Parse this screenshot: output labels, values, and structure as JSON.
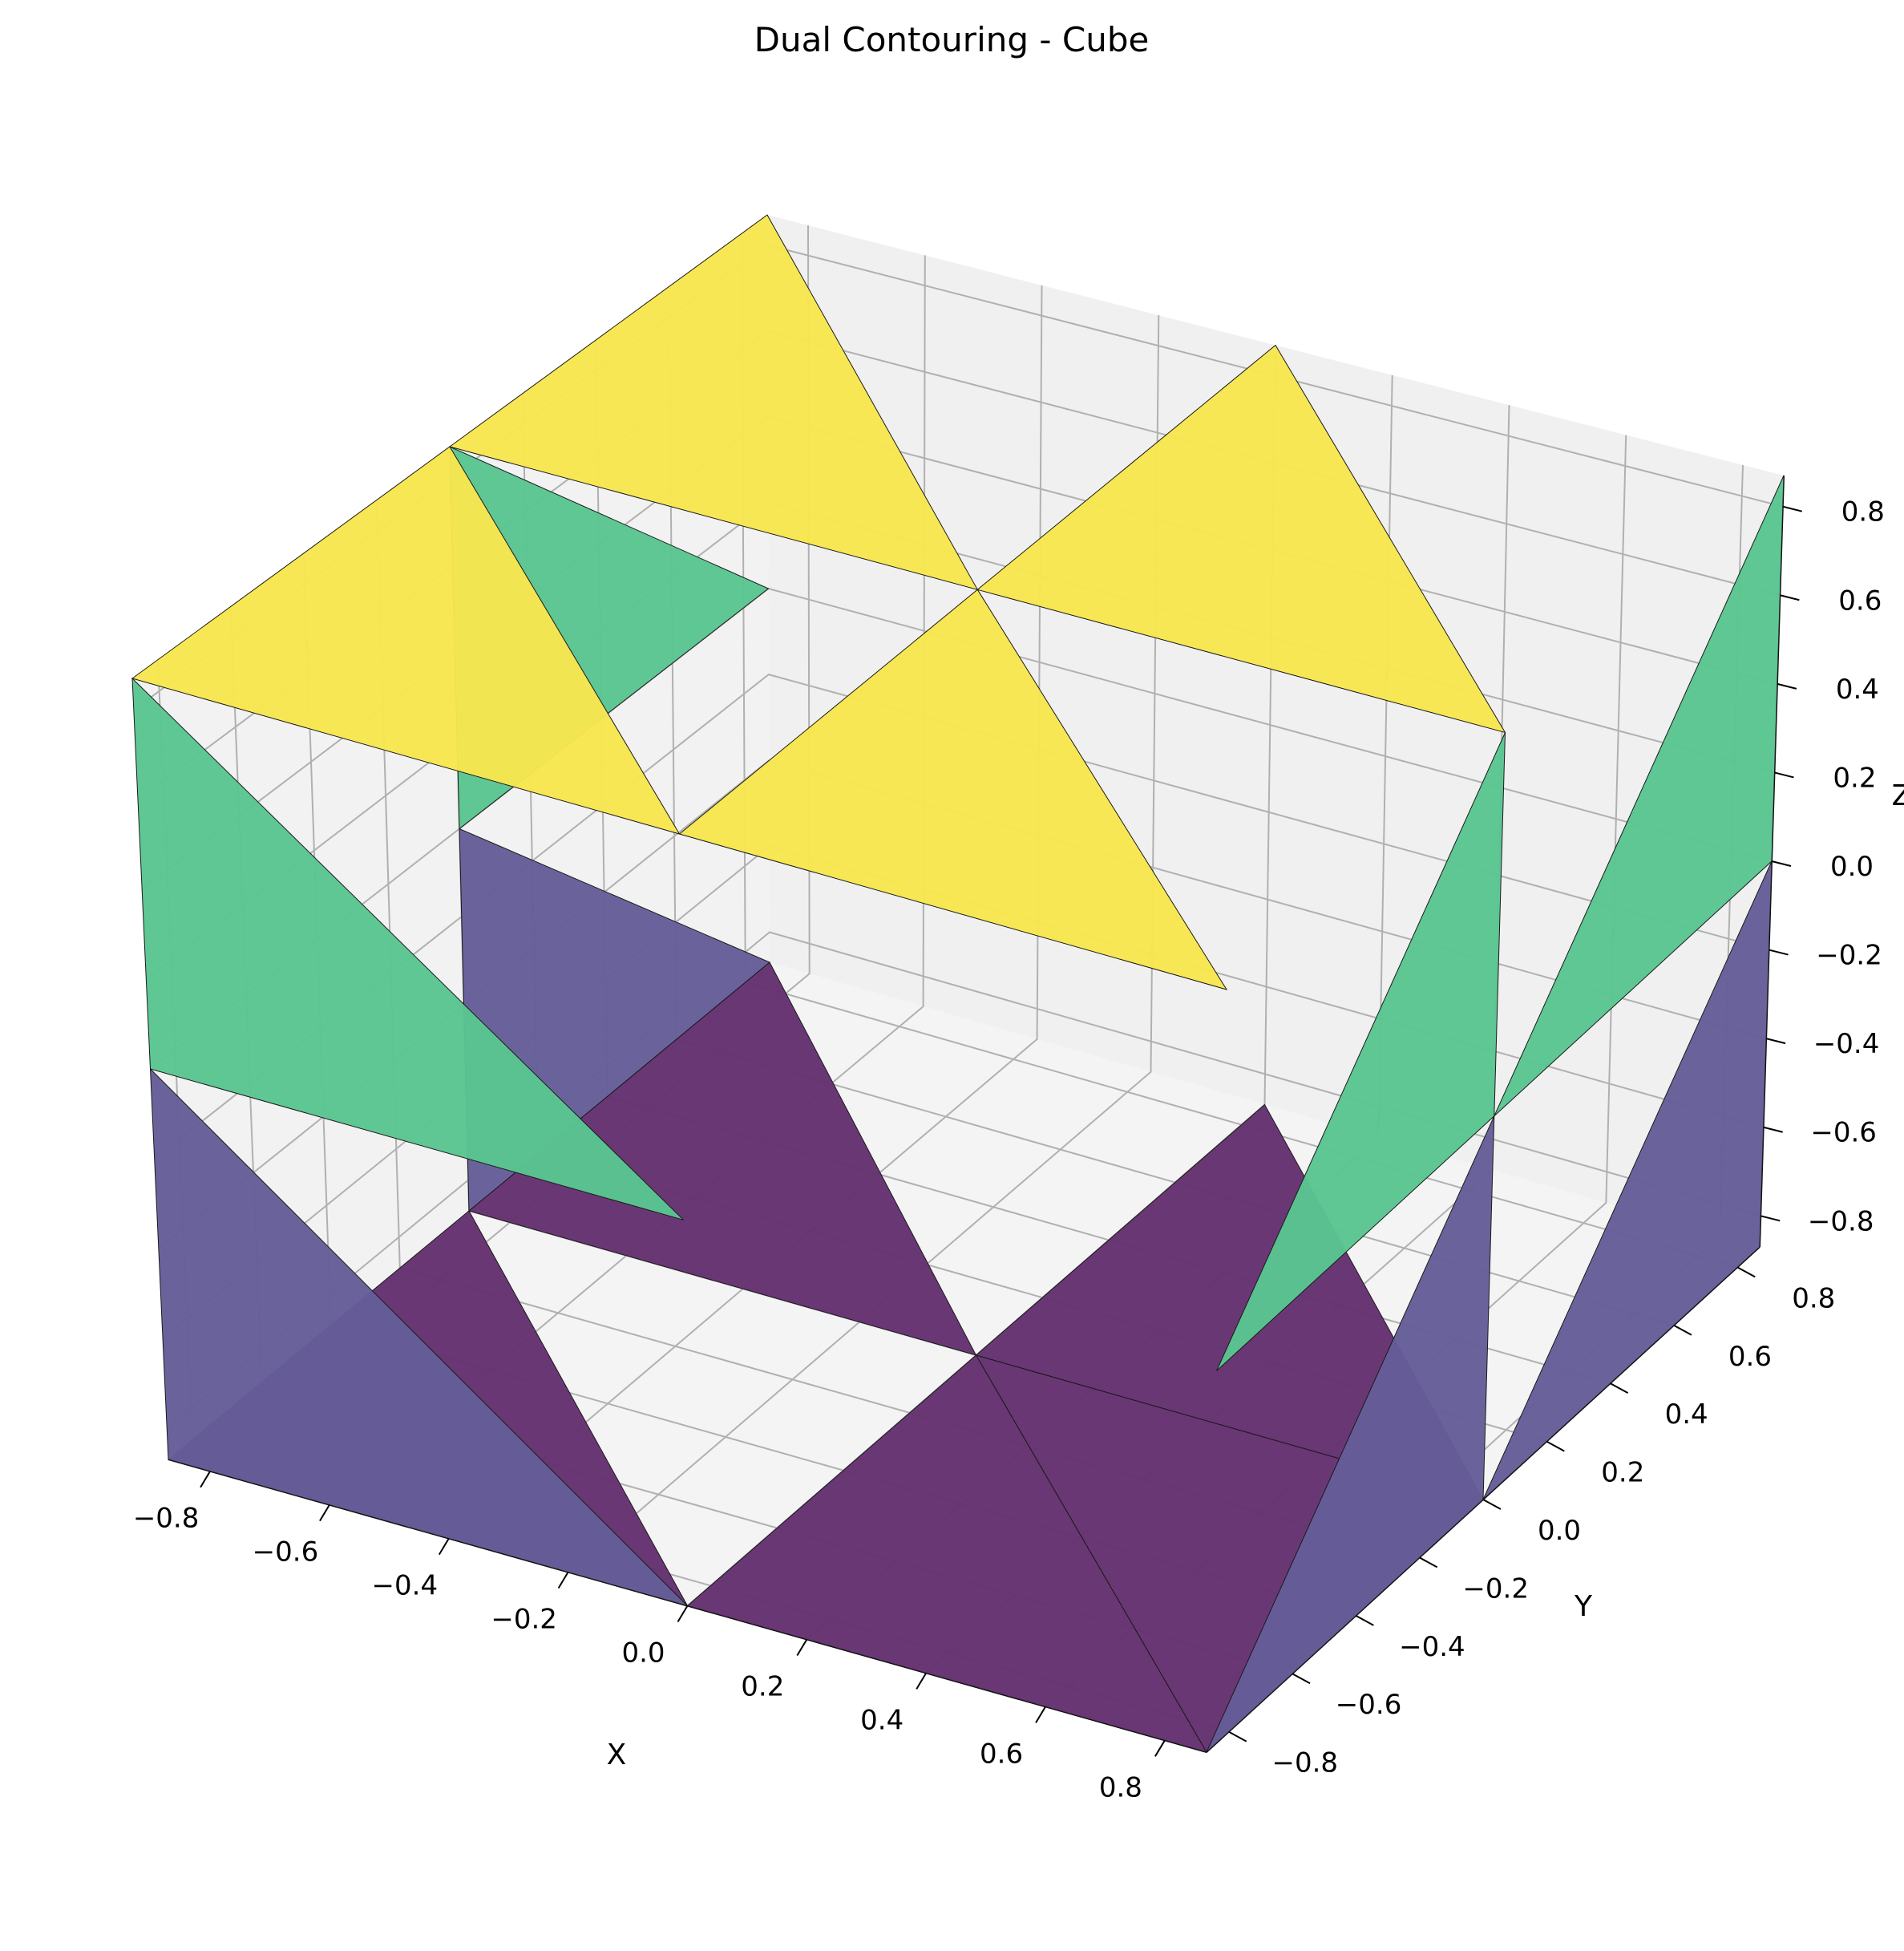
{
  "chart_data": {
    "type": "surface3d",
    "title": "Dual Contouring - Cube",
    "xlabel": "X",
    "ylabel": "Y",
    "zlabel": "Z",
    "xlim": [
      -0.87,
      0.87
    ],
    "ylim": [
      -0.87,
      0.87
    ],
    "zlim": [
      -0.87,
      0.87
    ],
    "x_ticks": [
      "−0.8",
      "−0.6",
      "−0.4",
      "−0.2",
      "0.0",
      "0.2",
      "0.4",
      "0.6",
      "0.8"
    ],
    "y_ticks": [
      "−0.8",
      "−0.6",
      "−0.4",
      "−0.2",
      "0.0",
      "0.2",
      "0.4",
      "0.6",
      "0.8"
    ],
    "z_ticks": [
      "−0.8",
      "−0.6",
      "−0.4",
      "−0.2",
      "0.0",
      "0.2",
      "0.4",
      "0.6",
      "0.8"
    ],
    "x_tick_values": [
      -0.8,
      -0.6,
      -0.4,
      -0.2,
      0.0,
      0.2,
      0.4,
      0.6,
      0.8
    ],
    "y_tick_values": [
      -0.8,
      -0.6,
      -0.4,
      -0.2,
      0.0,
      0.2,
      0.4,
      0.6,
      0.8
    ],
    "z_tick_values": [
      -0.8,
      -0.6,
      -0.4,
      -0.2,
      0.0,
      0.2,
      0.4,
      0.6,
      0.8
    ],
    "grid": true,
    "colormap": "viridis",
    "colors": {
      "top": "#f7e64f",
      "side_mid": "#5ac58f",
      "side_low": "#655e98",
      "bottom": "#653171",
      "pane_left": "#f2f2f2",
      "pane_back": "#f0f0f0",
      "pane_floor": "#f4f4f4",
      "grid": "#b0b0b0"
    },
    "triangles": [
      {
        "face": "bottom",
        "color": "#653171",
        "v": [
          [
            -0.87,
            -0.87,
            -0.87
          ],
          [
            0.0,
            -0.87,
            -0.87
          ],
          [
            -0.87,
            0.0,
            -0.87
          ]
        ]
      },
      {
        "face": "bottom",
        "color": "#653171",
        "v": [
          [
            0.0,
            -0.87,
            -0.87
          ],
          [
            0.87,
            -0.87,
            -0.87
          ],
          [
            0.0,
            0.0,
            -0.87
          ]
        ]
      },
      {
        "face": "bottom",
        "color": "#653171",
        "v": [
          [
            -0.87,
            0.0,
            -0.87
          ],
          [
            0.0,
            0.0,
            -0.87
          ],
          [
            -0.87,
            0.87,
            -0.87
          ]
        ]
      },
      {
        "face": "bottom",
        "color": "#653171",
        "v": [
          [
            0.0,
            0.0,
            -0.87
          ],
          [
            0.87,
            0.0,
            -0.87
          ],
          [
            0.0,
            0.87,
            -0.87
          ]
        ]
      },
      {
        "face": "bottom",
        "color": "#653171",
        "v": [
          [
            0.87,
            -0.87,
            -0.87
          ],
          [
            0.87,
            0.0,
            -0.87
          ],
          [
            0.0,
            0.0,
            -0.87
          ]
        ]
      },
      {
        "face": "side-y-neg",
        "color": "#655e98",
        "v": [
          [
            -0.87,
            -0.87,
            -0.87
          ],
          [
            -0.87,
            -0.87,
            0.0
          ],
          [
            0.0,
            -0.87,
            -0.87
          ]
        ]
      },
      {
        "face": "side-y-neg",
        "color": "#5ac58f",
        "v": [
          [
            -0.87,
            -0.87,
            0.0
          ],
          [
            -0.87,
            -0.87,
            0.87
          ],
          [
            0.0,
            -0.87,
            0.0
          ]
        ]
      },
      {
        "face": "side-x-neg",
        "color": "#655e98",
        "v": [
          [
            -0.87,
            0.0,
            -0.87
          ],
          [
            -0.87,
            0.0,
            0.0
          ],
          [
            -0.87,
            0.87,
            -0.87
          ]
        ]
      },
      {
        "face": "side-x-neg",
        "color": "#5ac58f",
        "v": [
          [
            -0.87,
            0.0,
            0.0
          ],
          [
            -0.87,
            0.0,
            0.87
          ],
          [
            -0.87,
            0.87,
            0.0
          ]
        ]
      },
      {
        "face": "side-x-pos",
        "color": "#655e98",
        "v": [
          [
            0.87,
            -0.87,
            -0.87
          ],
          [
            0.87,
            0.0,
            -0.87
          ],
          [
            0.87,
            0.0,
            0.0
          ]
        ]
      },
      {
        "face": "side-x-pos",
        "color": "#5ac58f",
        "v": [
          [
            0.87,
            -0.87,
            0.0
          ],
          [
            0.87,
            0.0,
            0.0
          ],
          [
            0.87,
            0.0,
            0.87
          ]
        ]
      },
      {
        "face": "side-x-pos",
        "color": "#655e98",
        "v": [
          [
            0.87,
            0.0,
            -0.87
          ],
          [
            0.87,
            0.87,
            -0.87
          ],
          [
            0.87,
            0.87,
            0.0
          ]
        ]
      },
      {
        "face": "side-x-pos",
        "color": "#5ac58f",
        "v": [
          [
            0.87,
            0.0,
            0.0
          ],
          [
            0.87,
            0.87,
            0.0
          ],
          [
            0.87,
            0.87,
            0.87
          ]
        ]
      },
      {
        "face": "top",
        "color": "#f7e64f",
        "v": [
          [
            -0.87,
            -0.87,
            0.87
          ],
          [
            0.0,
            -0.87,
            0.87
          ],
          [
            -0.87,
            0.0,
            0.87
          ]
        ]
      },
      {
        "face": "top",
        "color": "#f7e64f",
        "v": [
          [
            0.0,
            -0.87,
            0.87
          ],
          [
            0.87,
            -0.87,
            0.87
          ],
          [
            0.0,
            0.0,
            0.87
          ]
        ]
      },
      {
        "face": "top",
        "color": "#f7e64f",
        "v": [
          [
            -0.87,
            0.0,
            0.87
          ],
          [
            0.0,
            0.0,
            0.87
          ],
          [
            -0.87,
            0.87,
            0.87
          ]
        ]
      },
      {
        "face": "top",
        "color": "#f7e64f",
        "v": [
          [
            0.0,
            0.0,
            0.87
          ],
          [
            0.87,
            0.0,
            0.87
          ],
          [
            0.0,
            0.87,
            0.87
          ]
        ]
      }
    ]
  }
}
